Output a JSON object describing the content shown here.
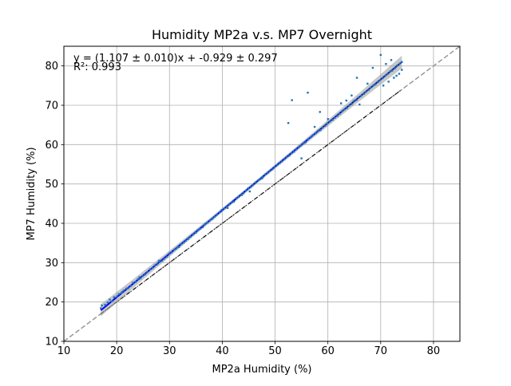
{
  "chart_data": {
    "type": "scatter",
    "title": "Humidity MP2a v.s. MP7 Overnight",
    "xlabel": "MP2a Humidity (%)",
    "ylabel": "MP7 Humidity (%)",
    "xlim": [
      10,
      85
    ],
    "ylim": [
      10,
      85
    ],
    "xticks": [
      10,
      20,
      30,
      40,
      50,
      60,
      70,
      80
    ],
    "yticks": [
      10,
      20,
      30,
      40,
      50,
      60,
      70,
      80
    ],
    "grid": true,
    "annotation": {
      "equation": "y = (1.107 ± 0.010)x + -0.929 ± 0.297",
      "r_squared": "R²: 0.993"
    },
    "fit": {
      "slope": 1.107,
      "intercept": -0.929,
      "x_range": [
        17,
        74
      ]
    },
    "reference_line": {
      "label": "",
      "slope": 1,
      "intercept": 0
    },
    "colors": {
      "points": "#1f77b4",
      "fit_line": "#0000ff",
      "fit_band": "#999999",
      "identity_line": "#999999",
      "secondary_line": "#000000"
    },
    "points": {
      "x": [
        17.0,
        17.2,
        17.8,
        18.3,
        18.7,
        19.1,
        19.5,
        20.0,
        20.4,
        20.9,
        21.3,
        21.8,
        22.2,
        22.7,
        23.1,
        23.6,
        24.0,
        24.5,
        24.9,
        25.4,
        25.8,
        26.3,
        26.8,
        27.2,
        27.7,
        28.1,
        28.6,
        29.0,
        29.5,
        29.9,
        30.4,
        30.9,
        31.3,
        31.8,
        32.2,
        32.7,
        33.1,
        33.6,
        34.0,
        34.5,
        34.9,
        35.4,
        35.8,
        36.3,
        36.8,
        37.2,
        37.7,
        38.1,
        38.6,
        39.0,
        39.5,
        39.9,
        40.4,
        40.9,
        41.3,
        41.8,
        42.2,
        42.7,
        43.1,
        43.6,
        44.0,
        44.5,
        44.9,
        45.4,
        45.8,
        46.3,
        46.8,
        47.2,
        47.7,
        48.1,
        48.6,
        49.0,
        49.5,
        49.9,
        50.4,
        50.9,
        51.3,
        51.8,
        52.2,
        52.7,
        53.1,
        53.6,
        54.0,
        54.5,
        54.9,
        55.4,
        55.8,
        56.3,
        56.8,
        57.2,
        57.7,
        58.1,
        58.6,
        59.0,
        59.5,
        59.9,
        60.4,
        60.9,
        61.3,
        61.8,
        62.2,
        62.7,
        63.1,
        63.6,
        64.0,
        64.5,
        64.9,
        65.4,
        65.8,
        66.3,
        66.8,
        67.2,
        67.7,
        68.1,
        68.6,
        69.0,
        69.5,
        69.9,
        70.4,
        70.9,
        71.3,
        71.8,
        72.2,
        72.7,
        73.1,
        73.6,
        74.0,
        33.5,
        35.0,
        36.6,
        38.2,
        41.0,
        43.7,
        45.2,
        47.5,
        21.0,
        24.3,
        28.0,
        31.5,
        52.5,
        53.2,
        55.0,
        56.2,
        57.5,
        58.5,
        60.0,
        62.5,
        63.5,
        64.5,
        65.5,
        66.0,
        67.5,
        68.5,
        70.0,
        71.0,
        72.0,
        73.0,
        74.0,
        70.5,
        71.5,
        72.5,
        73.5
      ],
      "y": [
        18.4,
        19.1,
        19.3,
        19.9,
        20.6,
        20.2,
        21.2,
        21.4,
        22.0,
        22.3,
        22.9,
        23.4,
        23.5,
        24.1,
        24.9,
        25.1,
        25.8,
        26.0,
        26.6,
        27.0,
        27.6,
        28.3,
        28.6,
        29.3,
        29.6,
        30.3,
        30.5,
        31.0,
        31.5,
        32.3,
        32.6,
        33.3,
        33.6,
        34.0,
        34.7,
        35.1,
        35.6,
        36.2,
        36.6,
        37.2,
        37.7,
        38.3,
        38.6,
        39.0,
        39.9,
        40.2,
        40.8,
        41.1,
        41.7,
        42.2,
        42.8,
        43.4,
        43.8,
        44.2,
        44.8,
        45.3,
        45.5,
        46.4,
        46.7,
        47.2,
        47.6,
        48.3,
        48.9,
        49.2,
        49.7,
        50.4,
        50.9,
        51.2,
        51.7,
        52.4,
        52.8,
        53.3,
        53.7,
        54.3,
        54.8,
        55.3,
        55.7,
        56.3,
        56.9,
        57.2,
        57.8,
        58.2,
        58.8,
        59.4,
        59.8,
        60.3,
        60.6,
        61.4,
        61.9,
        62.4,
        62.9,
        63.5,
        63.7,
        64.3,
        64.8,
        65.4,
        65.9,
        66.3,
        66.8,
        67.3,
        67.8,
        68.5,
        68.9,
        69.3,
        69.9,
        70.3,
        71.1,
        71.3,
        72.0,
        72.4,
        72.9,
        73.4,
        73.9,
        74.5,
        75.0,
        75.3,
        75.9,
        76.4,
        76.9,
        77.5,
        77.9,
        78.6,
        78.8,
        79.4,
        80.1,
        80.6,
        81.0,
        36.0,
        37.6,
        39.6,
        41.3,
        43.9,
        47.2,
        48.1,
        51.4,
        22.5,
        26.3,
        30.5,
        33.9,
        65.5,
        71.3,
        56.5,
        73.2,
        64.5,
        68.3,
        66.5,
        70.5,
        71.2,
        72.5,
        77.0,
        70.2,
        75.5,
        79.5,
        82.8,
        80.5,
        81.5,
        77.5,
        79.0,
        75.0,
        76.0,
        77.0,
        78.0
      ]
    }
  }
}
